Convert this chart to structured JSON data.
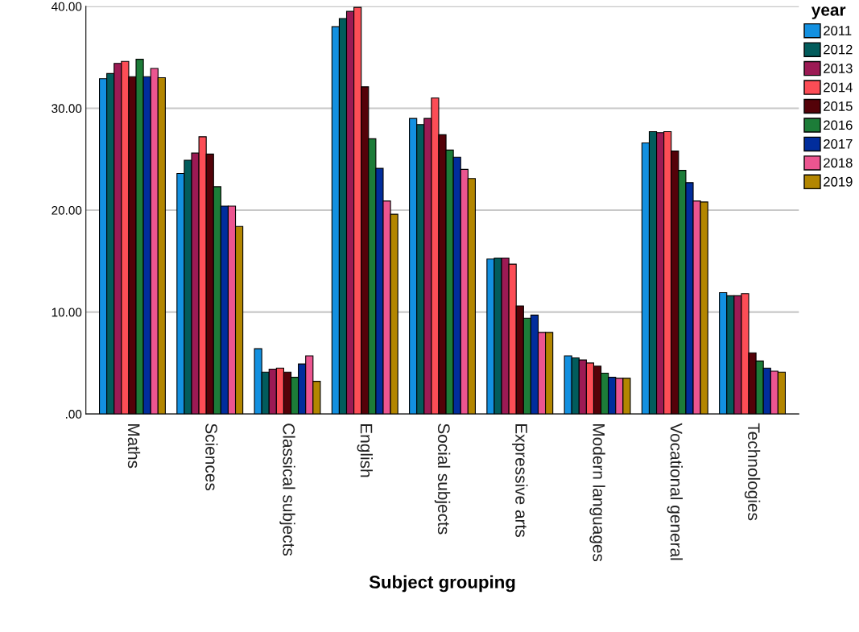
{
  "chart_data": {
    "type": "bar",
    "xlabel": "Subject grouping",
    "legend_title": "year",
    "categories": [
      "Maths",
      "Sciences",
      "Classical subjects",
      "English",
      "Social subjects",
      "Expressive arts",
      "Modern languages",
      "Vocational general",
      "Technologies"
    ],
    "series": [
      {
        "name": "2011",
        "color": "#1390e0",
        "values": [
          32.9,
          23.6,
          6.4,
          38.0,
          29.0,
          15.2,
          5.7,
          26.6,
          11.9
        ]
      },
      {
        "name": "2012",
        "color": "#025c5c",
        "values": [
          33.4,
          24.9,
          4.1,
          38.8,
          28.4,
          15.3,
          5.5,
          27.7,
          11.6
        ]
      },
      {
        "name": "2013",
        "color": "#9c1a54",
        "values": [
          34.4,
          25.6,
          4.4,
          39.5,
          29.0,
          15.3,
          5.3,
          27.6,
          11.6
        ]
      },
      {
        "name": "2014",
        "color": "#fc4d56",
        "values": [
          34.6,
          27.2,
          4.5,
          39.9,
          31.0,
          14.7,
          5.0,
          27.7,
          11.8
        ]
      },
      {
        "name": "2015",
        "color": "#540209",
        "values": [
          33.1,
          25.5,
          4.1,
          32.1,
          27.4,
          10.6,
          4.7,
          25.8,
          6.0
        ]
      },
      {
        "name": "2016",
        "color": "#1c7c38",
        "values": [
          34.8,
          22.3,
          3.6,
          27.0,
          25.9,
          9.4,
          4.0,
          23.9,
          5.2
        ]
      },
      {
        "name": "2017",
        "color": "#012d9c",
        "values": [
          33.1,
          20.4,
          4.9,
          24.1,
          25.2,
          9.7,
          3.6,
          22.7,
          4.5
        ]
      },
      {
        "name": "2018",
        "color": "#ec5590",
        "values": [
          33.9,
          20.4,
          5.7,
          20.9,
          24.0,
          8.0,
          3.5,
          20.9,
          4.2
        ]
      },
      {
        "name": "2019",
        "color": "#b38600",
        "values": [
          33.0,
          18.4,
          3.2,
          19.6,
          23.1,
          8.0,
          3.5,
          20.8,
          4.1
        ]
      }
    ],
    "ylim": [
      0,
      40
    ],
    "yticks": [
      {
        "value": 0,
        "label": ".00"
      },
      {
        "value": 10,
        "label": "10.00"
      },
      {
        "value": 20,
        "label": "20.00"
      },
      {
        "value": 30,
        "label": "30.00"
      },
      {
        "value": 40,
        "label": "40.00"
      }
    ],
    "grid": "y",
    "legend": "right"
  }
}
